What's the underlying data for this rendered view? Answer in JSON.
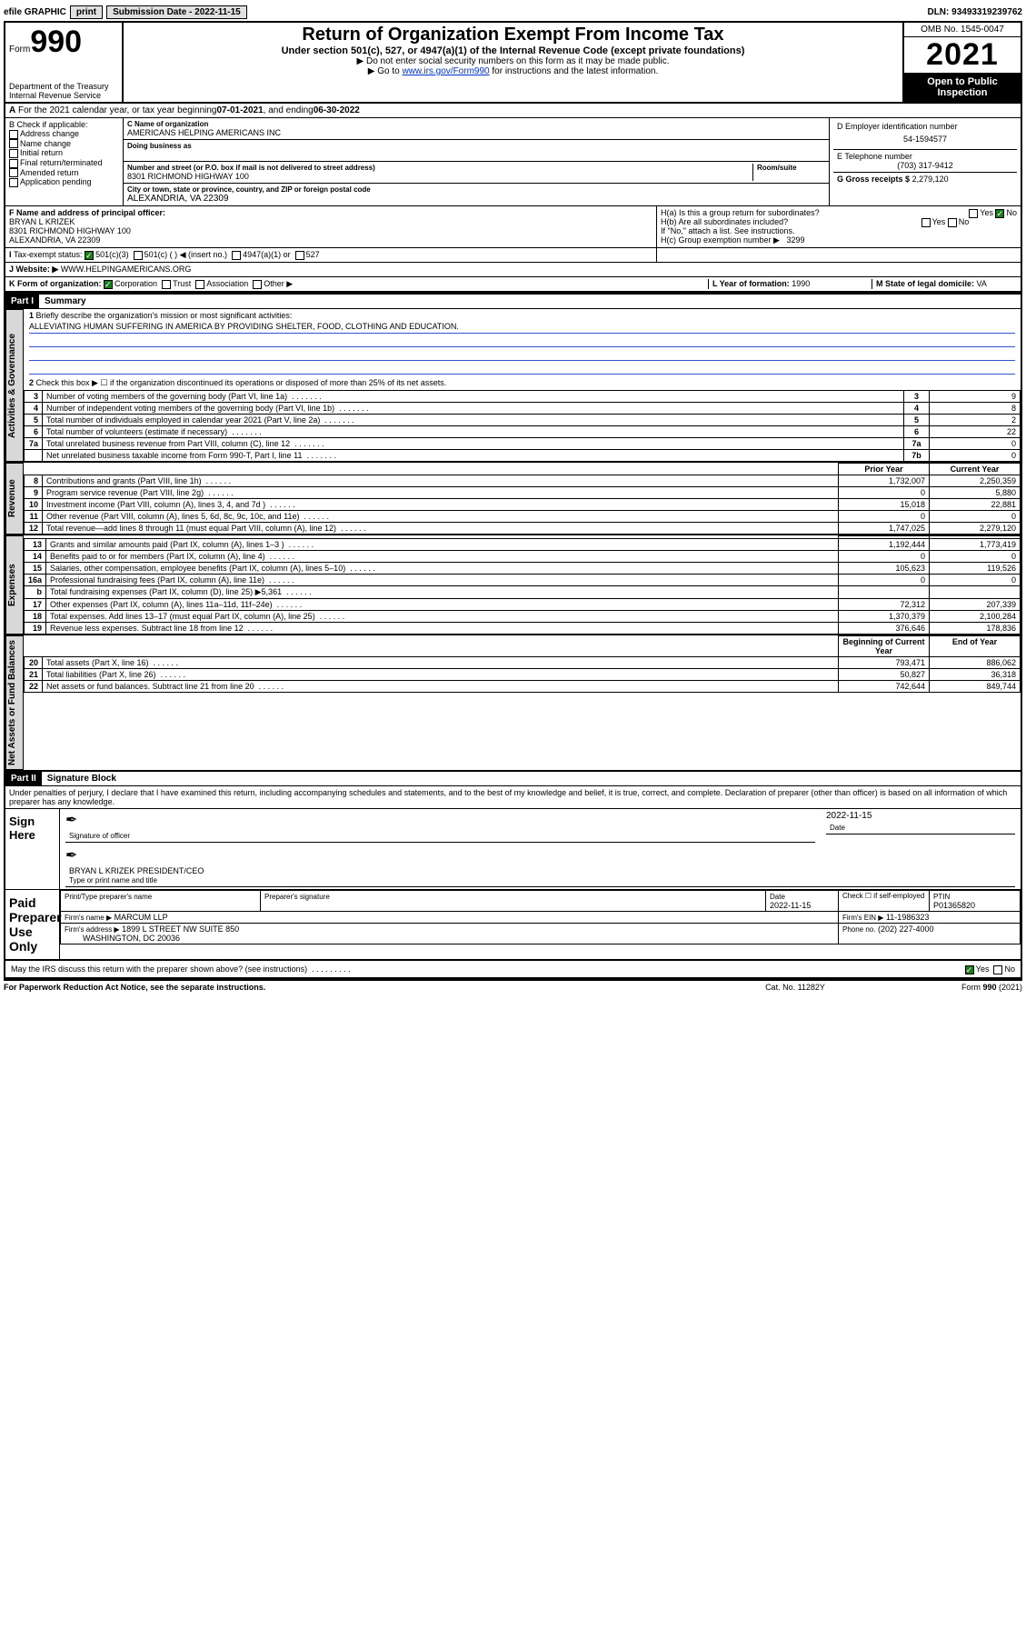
{
  "colors": {
    "border": "#000000",
    "link": "#0033cc",
    "check_green": "#1a7f1a",
    "gray_fill": "#d8d8d8",
    "shade": "#d0d0d0",
    "mission_underline": "#3355cc"
  },
  "toolbar": {
    "efile": "efile GRAPHIC",
    "print": "print",
    "sub_label": "Submission Date - 2022-11-15",
    "dln": "DLN: 93493319239762"
  },
  "header": {
    "form_word": "Form",
    "form_num": "990",
    "dept": "Department of the Treasury",
    "irs": "Internal Revenue Service",
    "title": "Return of Organization Exempt From Income Tax",
    "subtitle": "Under section 501(c), 527, or 4947(a)(1) of the Internal Revenue Code (except private foundations)",
    "instr1": "▶ Do not enter social security numbers on this form as it may be made public.",
    "instr2_pre": "▶ Go to ",
    "instr2_link": "www.irs.gov/Form990",
    "instr2_post": " for instructions and the latest information.",
    "omb": "OMB No. 1545-0047",
    "year": "2021",
    "open": "Open to Public Inspection"
  },
  "line_a": {
    "text_pre": "For the 2021 calendar year, or tax year beginning ",
    "begin": "07-01-2021",
    "mid": " , and ending ",
    "end": "06-30-2022"
  },
  "box_b": {
    "label": "B Check if applicable:",
    "items": [
      "Address change",
      "Name change",
      "Initial return",
      "Final return/terminated",
      "Amended return",
      "Application pending"
    ]
  },
  "box_c": {
    "name_label": "C Name of organization",
    "name": "AMERICANS HELPING AMERICANS INC",
    "dba_label": "Doing business as",
    "addr_label": "Number and street (or P.O. box if mail is not delivered to street address)",
    "room_label": "Room/suite",
    "addr": "8301 RICHMOND HIGHWAY 100",
    "city_label": "City or town, state or province, country, and ZIP or foreign postal code",
    "city": "ALEXANDRIA, VA  22309"
  },
  "box_d": {
    "label": "D Employer identification number",
    "value": "54-1594577"
  },
  "box_e": {
    "label": "E Telephone number",
    "value": "(703) 317-9412"
  },
  "box_g": {
    "label": "G Gross receipts $",
    "value": "2,279,120"
  },
  "box_f": {
    "label": "F Name and address of principal officer:",
    "name": "BRYAN L KRIZEK",
    "addr1": "8301 RICHMOND HIGHWAY 100",
    "addr2": "ALEXANDRIA, VA  22309"
  },
  "box_h": {
    "ha": "H(a)  Is this a group return for subordinates?",
    "ha_yes": "Yes",
    "ha_no": "No",
    "hb": "H(b)  Are all subordinates included?",
    "hb_yes": "Yes",
    "hb_no": "No",
    "hb_note": "If \"No,\" attach a list. See instructions.",
    "hc": "H(c)  Group exemption number ▶",
    "hc_val": "3299"
  },
  "box_i": {
    "label": "Tax-exempt status:",
    "opts": [
      "501(c)(3)",
      "501(c) (  ) ◀ (insert no.)",
      "4947(a)(1) or",
      "527"
    ]
  },
  "box_j": {
    "label": "Website: ▶",
    "value": "WWW.HELPINGAMERICANS.ORG"
  },
  "box_k": {
    "label": "K Form of organization:",
    "opts": [
      "Corporation",
      "Trust",
      "Association",
      "Other ▶"
    ]
  },
  "box_l": {
    "label": "L Year of formation:",
    "value": "1990"
  },
  "box_m": {
    "label": "M State of legal domicile:",
    "value": "VA"
  },
  "part1": {
    "hdr": "Part I",
    "title": "Summary"
  },
  "summary": {
    "line1_label": "Briefly describe the organization's mission or most significant activities:",
    "mission": "ALLEVIATING HUMAN SUFFERING IN AMERICA BY PROVIDING SHELTER, FOOD, CLOTHING AND EDUCATION.",
    "line2": "Check this box ▶ ☐  if the organization discontinued its operations or disposed of more than 25% of its net assets.",
    "gov_rows": [
      {
        "n": "3",
        "t": "Number of voting members of the governing body (Part VI, line 1a)",
        "box": "3",
        "v": "9"
      },
      {
        "n": "4",
        "t": "Number of independent voting members of the governing body (Part VI, line 1b)",
        "box": "4",
        "v": "8"
      },
      {
        "n": "5",
        "t": "Total number of individuals employed in calendar year 2021 (Part V, line 2a)",
        "box": "5",
        "v": "2"
      },
      {
        "n": "6",
        "t": "Total number of volunteers (estimate if necessary)",
        "box": "6",
        "v": "22"
      },
      {
        "n": "7a",
        "t": "Total unrelated business revenue from Part VIII, column (C), line 12",
        "box": "7a",
        "v": "0"
      },
      {
        "n": "",
        "t": "Net unrelated business taxable income from Form 990-T, Part I, line 11",
        "box": "7b",
        "v": "0"
      }
    ],
    "col_hdr_prior": "Prior Year",
    "col_hdr_curr": "Current Year",
    "rev_rows": [
      {
        "n": "8",
        "t": "Contributions and grants (Part VIII, line 1h)",
        "p": "1,732,007",
        "c": "2,250,359"
      },
      {
        "n": "9",
        "t": "Program service revenue (Part VIII, line 2g)",
        "p": "0",
        "c": "5,880"
      },
      {
        "n": "10",
        "t": "Investment income (Part VIII, column (A), lines 3, 4, and 7d )",
        "p": "15,018",
        "c": "22,881"
      },
      {
        "n": "11",
        "t": "Other revenue (Part VIII, column (A), lines 5, 6d, 8c, 9c, 10c, and 11e)",
        "p": "0",
        "c": "0"
      },
      {
        "n": "12",
        "t": "Total revenue—add lines 8 through 11 (must equal Part VIII, column (A), line 12)",
        "p": "1,747,025",
        "c": "2,279,120"
      }
    ],
    "exp_rows": [
      {
        "n": "13",
        "t": "Grants and similar amounts paid (Part IX, column (A), lines 1–3 )",
        "p": "1,192,444",
        "c": "1,773,419"
      },
      {
        "n": "14",
        "t": "Benefits paid to or for members (Part IX, column (A), line 4)",
        "p": "0",
        "c": "0"
      },
      {
        "n": "15",
        "t": "Salaries, other compensation, employee benefits (Part IX, column (A), lines 5–10)",
        "p": "105,623",
        "c": "119,526"
      },
      {
        "n": "16a",
        "t": "Professional fundraising fees (Part IX, column (A), line 11e)",
        "p": "0",
        "c": "0"
      },
      {
        "n": "b",
        "t": "Total fundraising expenses (Part IX, column (D), line 25) ▶5,361",
        "p": "",
        "c": "",
        "shade": true
      },
      {
        "n": "17",
        "t": "Other expenses (Part IX, column (A), lines 11a–11d, 11f–24e)",
        "p": "72,312",
        "c": "207,339"
      },
      {
        "n": "18",
        "t": "Total expenses. Add lines 13–17 (must equal Part IX, column (A), line 25)",
        "p": "1,370,379",
        "c": "2,100,284"
      },
      {
        "n": "19",
        "t": "Revenue less expenses. Subtract line 18 from line 12",
        "p": "376,646",
        "c": "178,836"
      }
    ],
    "bal_hdr_begin": "Beginning of Current Year",
    "bal_hdr_end": "End of Year",
    "bal_rows": [
      {
        "n": "20",
        "t": "Total assets (Part X, line 16)",
        "p": "793,471",
        "c": "886,062"
      },
      {
        "n": "21",
        "t": "Total liabilities (Part X, line 26)",
        "p": "50,827",
        "c": "36,318"
      },
      {
        "n": "22",
        "t": "Net assets or fund balances. Subtract line 21 from line 20",
        "p": "742,644",
        "c": "849,744"
      }
    ],
    "tab_gov": "Activities & Governance",
    "tab_rev": "Revenue",
    "tab_exp": "Expenses",
    "tab_bal": "Net Assets or Fund Balances"
  },
  "part2": {
    "hdr": "Part II",
    "title": "Signature Block"
  },
  "sig": {
    "perjury": "Under penalties of perjury, I declare that I have examined this return, including accompanying schedules and statements, and to the best of my knowledge and belief, it is true, correct, and complete. Declaration of preparer (other than officer) is based on all information of which preparer has any knowledge.",
    "sign_here": "Sign Here",
    "sig_of_officer": "Signature of officer",
    "date": "2022-11-15",
    "date_label": "Date",
    "officer_name": "BRYAN L KRIZEK  PRESIDENT/CEO",
    "type_name": "Type or print name and title",
    "paid": "Paid Preparer Use Only",
    "prep_name_label": "Print/Type preparer's name",
    "prep_sig_label": "Preparer's signature",
    "prep_date": "2022-11-15",
    "check_self": "Check ☐ if self-employed",
    "ptin_label": "PTIN",
    "ptin": "P01365820",
    "firm_name_label": "Firm's name   ▶",
    "firm_name": "MARCUM LLP",
    "firm_ein_label": "Firm's EIN ▶",
    "firm_ein": "11-1986323",
    "firm_addr_label": "Firm's address ▶",
    "firm_addr1": "1899 L STREET NW SUITE 850",
    "firm_addr2": "WASHINGTON, DC  20036",
    "phone_label": "Phone no.",
    "phone": "(202) 227-4000",
    "may_irs": "May the IRS discuss this return with the preparer shown above? (see instructions)",
    "may_yes": "Yes",
    "may_no": "No"
  },
  "footer": {
    "pra": "For Paperwork Reduction Act Notice, see the separate instructions.",
    "cat": "Cat. No. 11282Y",
    "form": "Form 990 (2021)"
  }
}
